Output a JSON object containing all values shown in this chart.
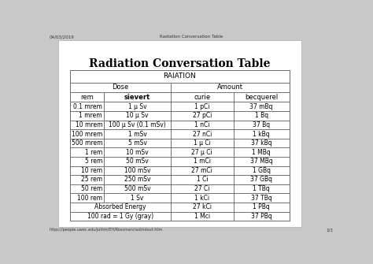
{
  "title": "Radiation Conversation Table",
  "header1": "RAIATION",
  "header2_left": "Dose",
  "header2_right": "Amount",
  "col_headers": [
    "rem",
    "sievert",
    "curie",
    "becquerel"
  ],
  "rows": [
    [
      "0.1 mrem",
      "1 μ Sv",
      "1 pCi",
      "37 mBq"
    ],
    [
      "1 mrem",
      "10 μ Sv",
      "27 pCi",
      "1 Bq"
    ],
    [
      "10 mrem",
      "100 μ Sv (0.1 mSv)",
      "1 nCi",
      "37 Bq"
    ],
    [
      "100 mrem",
      "1 mSv",
      "27 nCi",
      "1 kBq"
    ],
    [
      "500 mrem",
      "5 mSv",
      "1 μ Ci",
      "37 kBq"
    ],
    [
      "1 rem",
      "10 mSv",
      "27 μ Ci",
      "1 MBq"
    ],
    [
      "5 rem",
      "50 mSv",
      "1 mCi",
      "37 MBq"
    ],
    [
      "10 rem",
      "100 mSv",
      "27 mCi",
      "1 GBq"
    ],
    [
      "25 rem",
      "250 mSv",
      "1 Ci",
      "37 GBq"
    ],
    [
      "50 rem",
      "500 mSv",
      "27 Ci",
      "1 TBq"
    ],
    [
      "100 rem",
      "1 Sv",
      "1 kCi",
      "37 TBq"
    ],
    [
      "Absorbed Energy",
      "",
      "27 kCi",
      "1 PBq"
    ],
    [
      "100 rad = 1 Gy (gray)",
      "",
      "1 Mci",
      "37 PBq"
    ]
  ],
  "outer_bg": "#c8c8c8",
  "page_bg": "#ffffff",
  "browser_date": "04/03/2019",
  "browser_title": "Radiation Conversation Table",
  "browser_url": "https://people.uwec.edu/jolhm/EH/Rossman/rad/ndout.htm",
  "browser_page": "1/3",
  "title_fontsize": 10,
  "header1_fontsize": 6.5,
  "header2_fontsize": 6,
  "colhead_fontsize": 6,
  "cell_fontsize": 5.5
}
